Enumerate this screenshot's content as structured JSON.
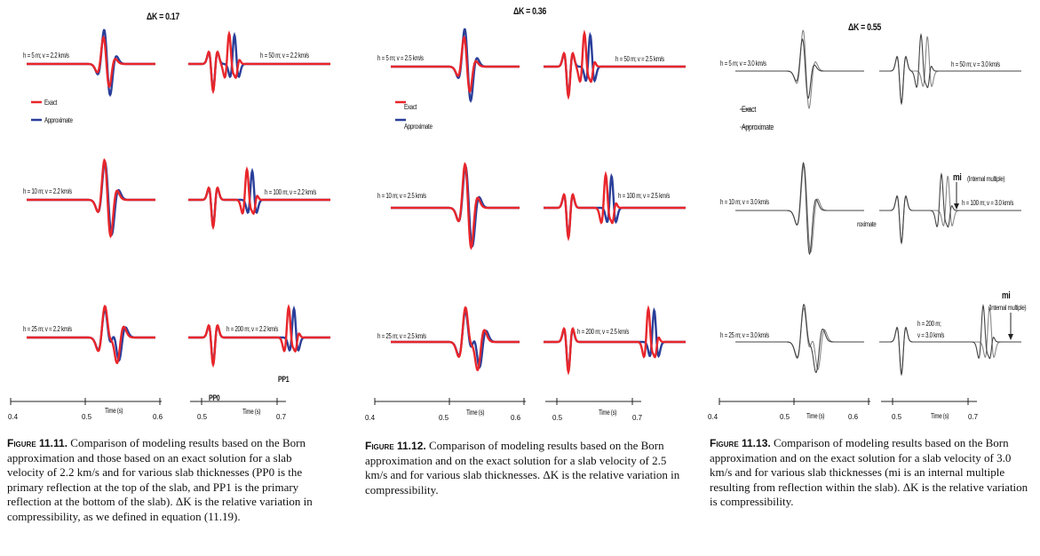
{
  "columns": [
    {
      "delta_k": "ΔK = 0.17",
      "color_mode": "color",
      "rows": [
        {
          "left": "h = 5 m; v = 2.2 km/s",
          "right": "h = 50 m; v = 2.2 km/s"
        },
        {
          "left": "h = 10 m; v = 2.2 km/s",
          "right": "h = 100 m; v = 2.2 km/s"
        },
        {
          "left": "h = 25 m; v = 2.2 km/s",
          "right": "h = 200 m; v = 2.2 km/s"
        }
      ],
      "legend": {
        "exact": "Exact",
        "approx": "Approximate"
      },
      "annotations": {
        "pp0": "PP0",
        "pp1": "PP1"
      },
      "axis_left": {
        "ticks": [
          "0.4",
          "0.5",
          "0.6"
        ],
        "label": "Time (s)"
      },
      "axis_right": {
        "ticks": [
          "0.5",
          "0.7"
        ],
        "label": "Time (s)"
      },
      "caption_label": "Figure 11.11.",
      "caption_text": " Comparison of modeling results based on the Born approximation and those based on an exact solution for a slab velocity of 2.2 km/s and for various slab thicknesses (PP0 is the primary reflection at the top of the slab, and PP1 is the primary reflection at the bottom of the slab). ΔK is the relative variation in compressibility, as we defined in equation (11.19)."
    },
    {
      "delta_k": "ΔK = 0.36",
      "color_mode": "color",
      "rows": [
        {
          "left": "h = 5 m; v = 2.5 km/s",
          "right": "h = 50 m; v = 2.5 km/s"
        },
        {
          "left": "h = 10 m; v = 2.5 km/s",
          "right": "h = 100 m; v = 2.5 km/s"
        },
        {
          "left": "h = 25 m; v = 2.5 km/s",
          "right": "h = 200 m; v = 2.5 km/s"
        }
      ],
      "legend": {
        "exact": "Exact",
        "approx": "Approximate"
      },
      "axis_left": {
        "ticks": [
          "0.4",
          "0.5",
          "0.6"
        ],
        "label": "Time (s)"
      },
      "axis_right": {
        "ticks": [
          "0.5",
          "0.7"
        ],
        "label": "Time (s)"
      },
      "caption_label": "Figure 11.12.",
      "caption_text": " Comparison of modeling results based on the Born approximation and on the exact solution for a slab velocity of 2.5 km/s and for various slab thicknesses. ΔK is the relative variation in compressibility."
    },
    {
      "delta_k": "ΔK = 0.55",
      "color_mode": "gray",
      "rows": [
        {
          "left": "h = 5 m; v = 3.0 km/s",
          "right": "h = 50 m; v = 3.0 km/s"
        },
        {
          "left": "h = 10 m; v = 3.0 km/s",
          "right": "h = 100 m; v = 3.0 km/s"
        },
        {
          "left": "h = 25 m; v = 3.0 km/s",
          "right_line1": "h = 200 m;",
          "right_line2": "v = 3.0 km/s"
        }
      ],
      "legend": {
        "exact": "Exact",
        "approx": "Approximate"
      },
      "annotations": {
        "mi1": "mi",
        "mi1_sub": "(Internal multiple)",
        "mi2": "mi",
        "mi2_sub": "(Internal multiple)",
        "stray": "roximate"
      },
      "axis_left": {
        "ticks": [
          "0.4",
          "0.5",
          "0.6"
        ],
        "label": "Time (s)"
      },
      "axis_right": {
        "ticks": [
          "0.5",
          "0.7"
        ],
        "label": "Time (s)"
      },
      "caption_label": "Figure 11.13.",
      "caption_text": " Comparison of modeling results based on the Born approximation and on the exact solution for a slab velocity of 3.0 km/s and for various slab thicknesses (mi is an internal multiple resulting from reflection within the slab). ΔK is the relative variation is compressibility."
    }
  ],
  "colors": {
    "exact": "#e8262b",
    "approx": "#2a3f9a",
    "gray_exact": "#444444",
    "gray_approx": "#888888"
  },
  "chart_data": [
    {
      "type": "line",
      "title": "ΔK = 0.17",
      "xlabel": "Time (s)",
      "series": [
        {
          "name": "Exact"
        },
        {
          "name": "Approximate"
        }
      ],
      "panels": [
        "h = 5 m",
        "h = 10 m",
        "h = 25 m",
        "h = 50 m",
        "h = 100 m",
        "h = 200 m"
      ],
      "velocity": "2.2 km/s"
    },
    {
      "type": "line",
      "title": "ΔK = 0.36",
      "xlabel": "Time (s)",
      "series": [
        {
          "name": "Exact"
        },
        {
          "name": "Approximate"
        }
      ],
      "panels": [
        "h = 5 m",
        "h = 10 m",
        "h = 25 m",
        "h = 50 m",
        "h = 100 m",
        "h = 200 m"
      ],
      "velocity": "2.5 km/s"
    },
    {
      "type": "line",
      "title": "ΔK = 0.55",
      "xlabel": "Time (s)",
      "series": [
        {
          "name": "Exact"
        },
        {
          "name": "Approximate"
        }
      ],
      "panels": [
        "h = 5 m",
        "h = 10 m",
        "h = 25 m",
        "h = 50 m",
        "h = 100 m",
        "h = 200 m"
      ],
      "velocity": "3.0 km/s"
    }
  ]
}
